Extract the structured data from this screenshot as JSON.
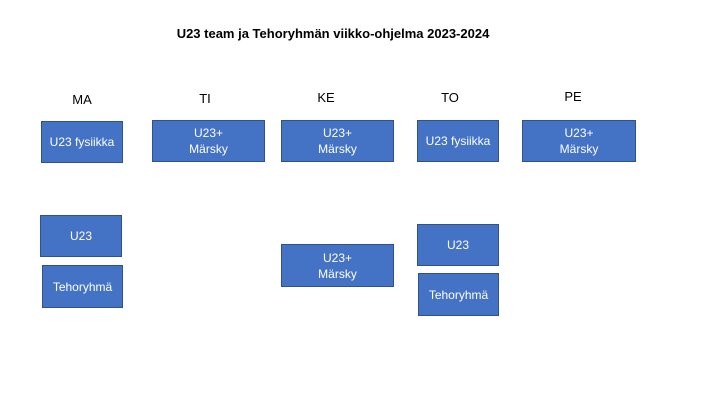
{
  "title": "U23 team ja Tehoryhmän viikko-ohjelma 2023-2024",
  "days": {
    "ma": "MA",
    "ti": "TI",
    "ke": "KE",
    "to": "TO",
    "pe": "PE"
  },
  "blocks": {
    "ma_1": [
      "U23 fysiikka"
    ],
    "ti_1": [
      "U23+",
      "Märsky"
    ],
    "ke_1": [
      "U23+",
      "Märsky"
    ],
    "to_1": [
      "U23 fysiikka"
    ],
    "pe_1": [
      "U23+",
      "Märsky"
    ],
    "ma_2": [
      "U23"
    ],
    "ma_3": [
      "Tehoryhmä"
    ],
    "ke_2": [
      "U23+",
      "Märsky"
    ],
    "to_2": [
      "U23"
    ],
    "to_3": [
      "Tehoryhmä"
    ]
  },
  "colors": {
    "block_fill": "#4472c4",
    "block_border": "#2f528f",
    "block_text": "#ffffff"
  }
}
